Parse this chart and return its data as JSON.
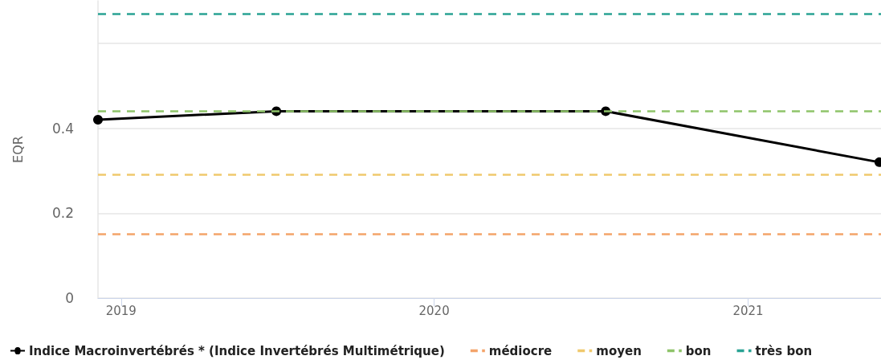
{
  "chart_data": {
    "type": "line",
    "ylabel": "EQR",
    "x": [
      "2018-12-05",
      "2019-07-01",
      "2020-07-19",
      "2021-06-03"
    ],
    "series": [
      {
        "name": "Indice Macroinvertébrés * (Indice Invertébrés Multimétrique)",
        "color": "#000000",
        "values": [
          0.42,
          0.44,
          0.44,
          0.32
        ]
      }
    ],
    "xlim": [
      "2018-12-05",
      "2021-06-05"
    ],
    "xticks": [
      {
        "value": "2019-01-01",
        "label": "2019"
      },
      {
        "value": "2020-01-01",
        "label": "2020"
      },
      {
        "value": "2021-01-01",
        "label": "2021"
      }
    ],
    "ylim": [
      0,
      0.7
    ],
    "yticks": [
      0,
      0.2,
      0.4,
      {
        "value": 0.6,
        "label": null
      }
    ],
    "ref_lines": [
      {
        "axis": "y",
        "value": 0.151,
        "label": "médiocre",
        "color": "#f4a46a",
        "line_style": "dashed"
      },
      {
        "axis": "y",
        "value": 0.291,
        "label": "moyen",
        "color": "#f0c96d",
        "line_style": "dashed"
      },
      {
        "axis": "y",
        "value": 0.443,
        "label": "bon",
        "color": "#8fc46a",
        "line_style": "dashed"
      },
      {
        "axis": "y",
        "value": 0.67,
        "label": "très bon",
        "color": "#2aa394",
        "line_style": "dashed"
      }
    ],
    "grid": "y",
    "legend": "bottom",
    "marker": "circle",
    "line_style": "solid"
  }
}
